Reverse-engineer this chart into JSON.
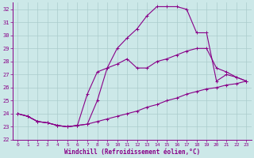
{
  "xlabel": "Windchill (Refroidissement éolien,°C)",
  "xlim": [
    -0.5,
    23.5
  ],
  "ylim": [
    22,
    32.5
  ],
  "yticks": [
    22,
    23,
    24,
    25,
    26,
    27,
    28,
    29,
    30,
    31,
    32
  ],
  "xticks": [
    0,
    1,
    2,
    3,
    4,
    5,
    6,
    7,
    8,
    9,
    10,
    11,
    12,
    13,
    14,
    15,
    16,
    17,
    18,
    19,
    20,
    21,
    22,
    23
  ],
  "bg_color": "#cce8e8",
  "grid_color": "#aacccc",
  "line_color": "#880088",
  "line1_x": [
    0,
    1,
    2,
    3,
    4,
    5,
    6,
    7,
    8,
    9,
    10,
    11,
    12,
    13,
    14,
    15,
    16,
    17,
    18,
    19,
    20,
    21,
    22,
    23
  ],
  "line1_y": [
    24.0,
    23.8,
    23.4,
    23.3,
    23.1,
    23.0,
    23.1,
    23.2,
    23.4,
    23.6,
    23.8,
    24.0,
    24.2,
    24.5,
    24.7,
    25.0,
    25.2,
    25.5,
    25.7,
    25.9,
    26.0,
    26.2,
    26.3,
    26.5
  ],
  "line2_x": [
    0,
    1,
    2,
    3,
    4,
    5,
    6,
    7,
    8,
    9,
    10,
    11,
    12,
    13,
    14,
    15,
    16,
    17,
    18,
    19,
    20,
    21,
    22,
    23
  ],
  "line2_y": [
    24.0,
    23.8,
    23.4,
    23.3,
    23.1,
    23.0,
    23.1,
    25.5,
    27.2,
    27.5,
    27.8,
    28.2,
    27.5,
    27.5,
    28.0,
    28.2,
    28.5,
    28.8,
    29.0,
    29.0,
    27.5,
    27.2,
    26.8,
    26.5
  ],
  "line3_x": [
    0,
    1,
    2,
    3,
    4,
    5,
    6,
    7,
    8,
    9,
    10,
    11,
    12,
    13,
    14,
    15,
    16,
    17,
    18,
    19,
    20,
    21,
    22,
    23
  ],
  "line3_y": [
    24.0,
    23.8,
    23.4,
    23.3,
    23.1,
    23.0,
    23.1,
    23.2,
    25.0,
    27.5,
    29.0,
    29.8,
    30.5,
    31.5,
    32.2,
    32.2,
    32.2,
    32.0,
    30.2,
    30.2,
    26.5,
    27.0,
    26.8,
    26.5
  ]
}
